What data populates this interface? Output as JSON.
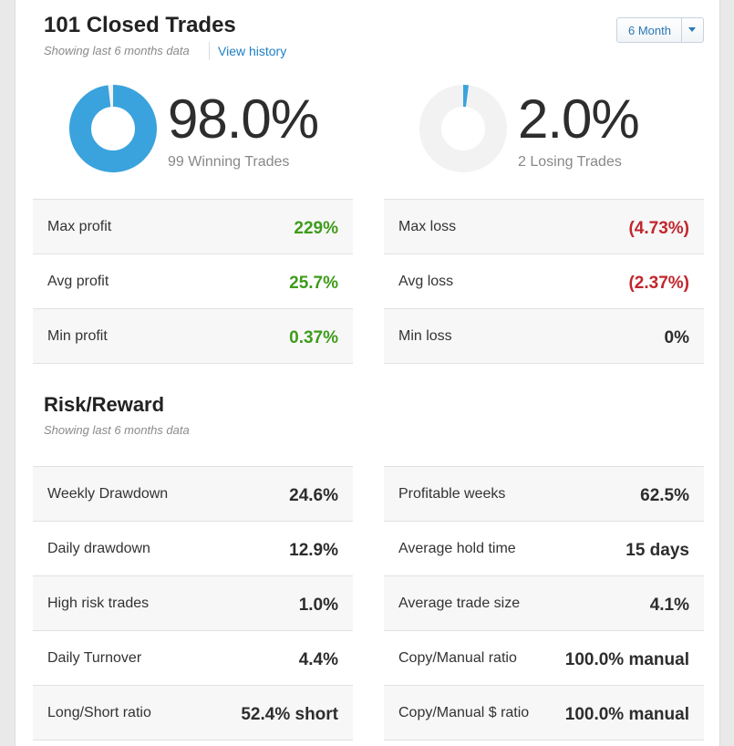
{
  "header": {
    "title": "101 Closed Trades",
    "subtitle": "Showing last 6 months data",
    "view_history": "View history",
    "period_selected": "6 Month"
  },
  "winning": {
    "percent": "98.0%",
    "caption": "99 Winning Trades",
    "fraction": 0.98,
    "color": "#3aa3dd"
  },
  "losing": {
    "percent": "2.0%",
    "caption": "2 Losing Trades",
    "fraction": 0.02,
    "color": "#3aa3dd"
  },
  "profit_stats": [
    {
      "label": "Max profit",
      "value": "229%"
    },
    {
      "label": "Avg profit",
      "value": "25.7%"
    },
    {
      "label": "Min profit",
      "value": "0.37%"
    }
  ],
  "loss_stats": [
    {
      "label": "Max loss",
      "value": "(4.73%)"
    },
    {
      "label": "Avg loss",
      "value": "(2.37%)"
    },
    {
      "label": "Min loss",
      "value": "0%"
    }
  ],
  "risk": {
    "title": "Risk/Reward",
    "subtitle": "Showing last 6 months data",
    "left": [
      {
        "label": "Weekly Drawdown",
        "value": "24.6%"
      },
      {
        "label": "Daily drawdown",
        "value": "12.9%"
      },
      {
        "label": "High risk trades",
        "value": "1.0%"
      },
      {
        "label": "Daily Turnover",
        "value": "4.4%"
      },
      {
        "label": "Long/Short ratio",
        "value": "52.4% short"
      }
    ],
    "right": [
      {
        "label": "Profitable weeks",
        "value": "62.5%"
      },
      {
        "label": "Average hold time",
        "value": "15 days"
      },
      {
        "label": "Average trade size",
        "value": "4.1%"
      },
      {
        "label": "Copy/Manual ratio",
        "value": "100.0% manual"
      },
      {
        "label": "Copy/Manual $ ratio",
        "value": "100.0% manual"
      }
    ]
  },
  "colors": {
    "positive": "#3f9b1b",
    "negative": "#c1272d",
    "track": "#f2f2f2",
    "accent": "#3aa3dd"
  }
}
